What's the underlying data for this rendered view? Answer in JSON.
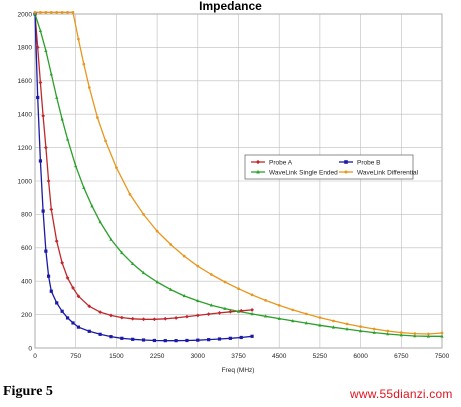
{
  "chart_data": {
    "type": "line",
    "title": "Impedance",
    "xlabel": "Freq (MHz)",
    "ylabel": "",
    "xlim": [
      0,
      7500
    ],
    "ylim": [
      0,
      2000
    ],
    "xticks": [
      0,
      750,
      1500,
      2250,
      3000,
      3750,
      4500,
      5250,
      6000,
      6750,
      7500
    ],
    "yticks": [
      0,
      200,
      400,
      600,
      800,
      1000,
      1200,
      1400,
      1600,
      1800,
      2000
    ],
    "grid": true,
    "legend_position": "center-right",
    "series": [
      {
        "name": "Probe A",
        "color": "#c0282c",
        "marker": "diamond",
        "x": [
          0,
          50,
          100,
          150,
          200,
          250,
          300,
          400,
          500,
          600,
          700,
          800,
          1000,
          1200,
          1400,
          1600,
          1800,
          2000,
          2200,
          2400,
          2600,
          2800,
          3000,
          3200,
          3400,
          3600,
          3800,
          4000
        ],
        "y": [
          2000,
          1800,
          1590,
          1390,
          1200,
          1000,
          830,
          640,
          510,
          420,
          360,
          310,
          250,
          215,
          195,
          182,
          175,
          172,
          172,
          175,
          180,
          188,
          195,
          203,
          210,
          217,
          223,
          228
        ]
      },
      {
        "name": "Probe B",
        "color": "#1a1aa6",
        "marker": "square",
        "x": [
          0,
          50,
          100,
          150,
          200,
          250,
          300,
          400,
          500,
          600,
          700,
          800,
          1000,
          1200,
          1400,
          1600,
          1800,
          2000,
          2200,
          2400,
          2600,
          2800,
          3000,
          3200,
          3400,
          3600,
          3800,
          4000
        ],
        "y": [
          2000,
          1500,
          1120,
          820,
          580,
          430,
          340,
          270,
          220,
          180,
          150,
          125,
          100,
          82,
          68,
          58,
          52,
          48,
          45,
          44,
          44,
          45,
          47,
          50,
          54,
          58,
          63,
          70
        ]
      },
      {
        "name": "WaveLink Single Ended",
        "color": "#2aa02a",
        "marker": "triangle",
        "x": [
          0,
          100,
          200,
          300,
          400,
          500,
          600,
          750,
          900,
          1050,
          1200,
          1400,
          1600,
          1800,
          2000,
          2250,
          2500,
          2750,
          3000,
          3250,
          3500,
          3750,
          4000,
          4250,
          4500,
          4750,
          5000,
          5250,
          5500,
          5750,
          6000,
          6250,
          6500,
          6750,
          7000,
          7250,
          7500
        ],
        "y": [
          2000,
          1900,
          1780,
          1640,
          1500,
          1370,
          1250,
          1090,
          960,
          850,
          755,
          650,
          570,
          505,
          450,
          395,
          350,
          312,
          282,
          256,
          236,
          219,
          204,
          190,
          176,
          162,
          149,
          136,
          124,
          113,
          102,
          92,
          84,
          77,
          72,
          70,
          70
        ]
      },
      {
        "name": "WaveLink Differential",
        "color": "#e8961e",
        "marker": "circle",
        "x": [
          0,
          100,
          200,
          300,
          400,
          500,
          600,
          700,
          800,
          900,
          1000,
          1150,
          1300,
          1500,
          1750,
          2000,
          2250,
          2500,
          2750,
          3000,
          3250,
          3500,
          3750,
          4000,
          4250,
          4500,
          4750,
          5000,
          5250,
          5500,
          5750,
          6000,
          6250,
          6500,
          6750,
          7000,
          7250,
          7500
        ],
        "y": [
          2010,
          2010,
          2010,
          2010,
          2010,
          2010,
          2010,
          2010,
          1850,
          1700,
          1560,
          1380,
          1240,
          1080,
          920,
          800,
          700,
          620,
          550,
          490,
          440,
          395,
          355,
          318,
          285,
          255,
          228,
          204,
          182,
          162,
          144,
          128,
          114,
          102,
          92,
          86,
          84,
          90
        ]
      }
    ]
  },
  "caption": "Figure 5",
  "watermark": "www.55dianzi.com"
}
